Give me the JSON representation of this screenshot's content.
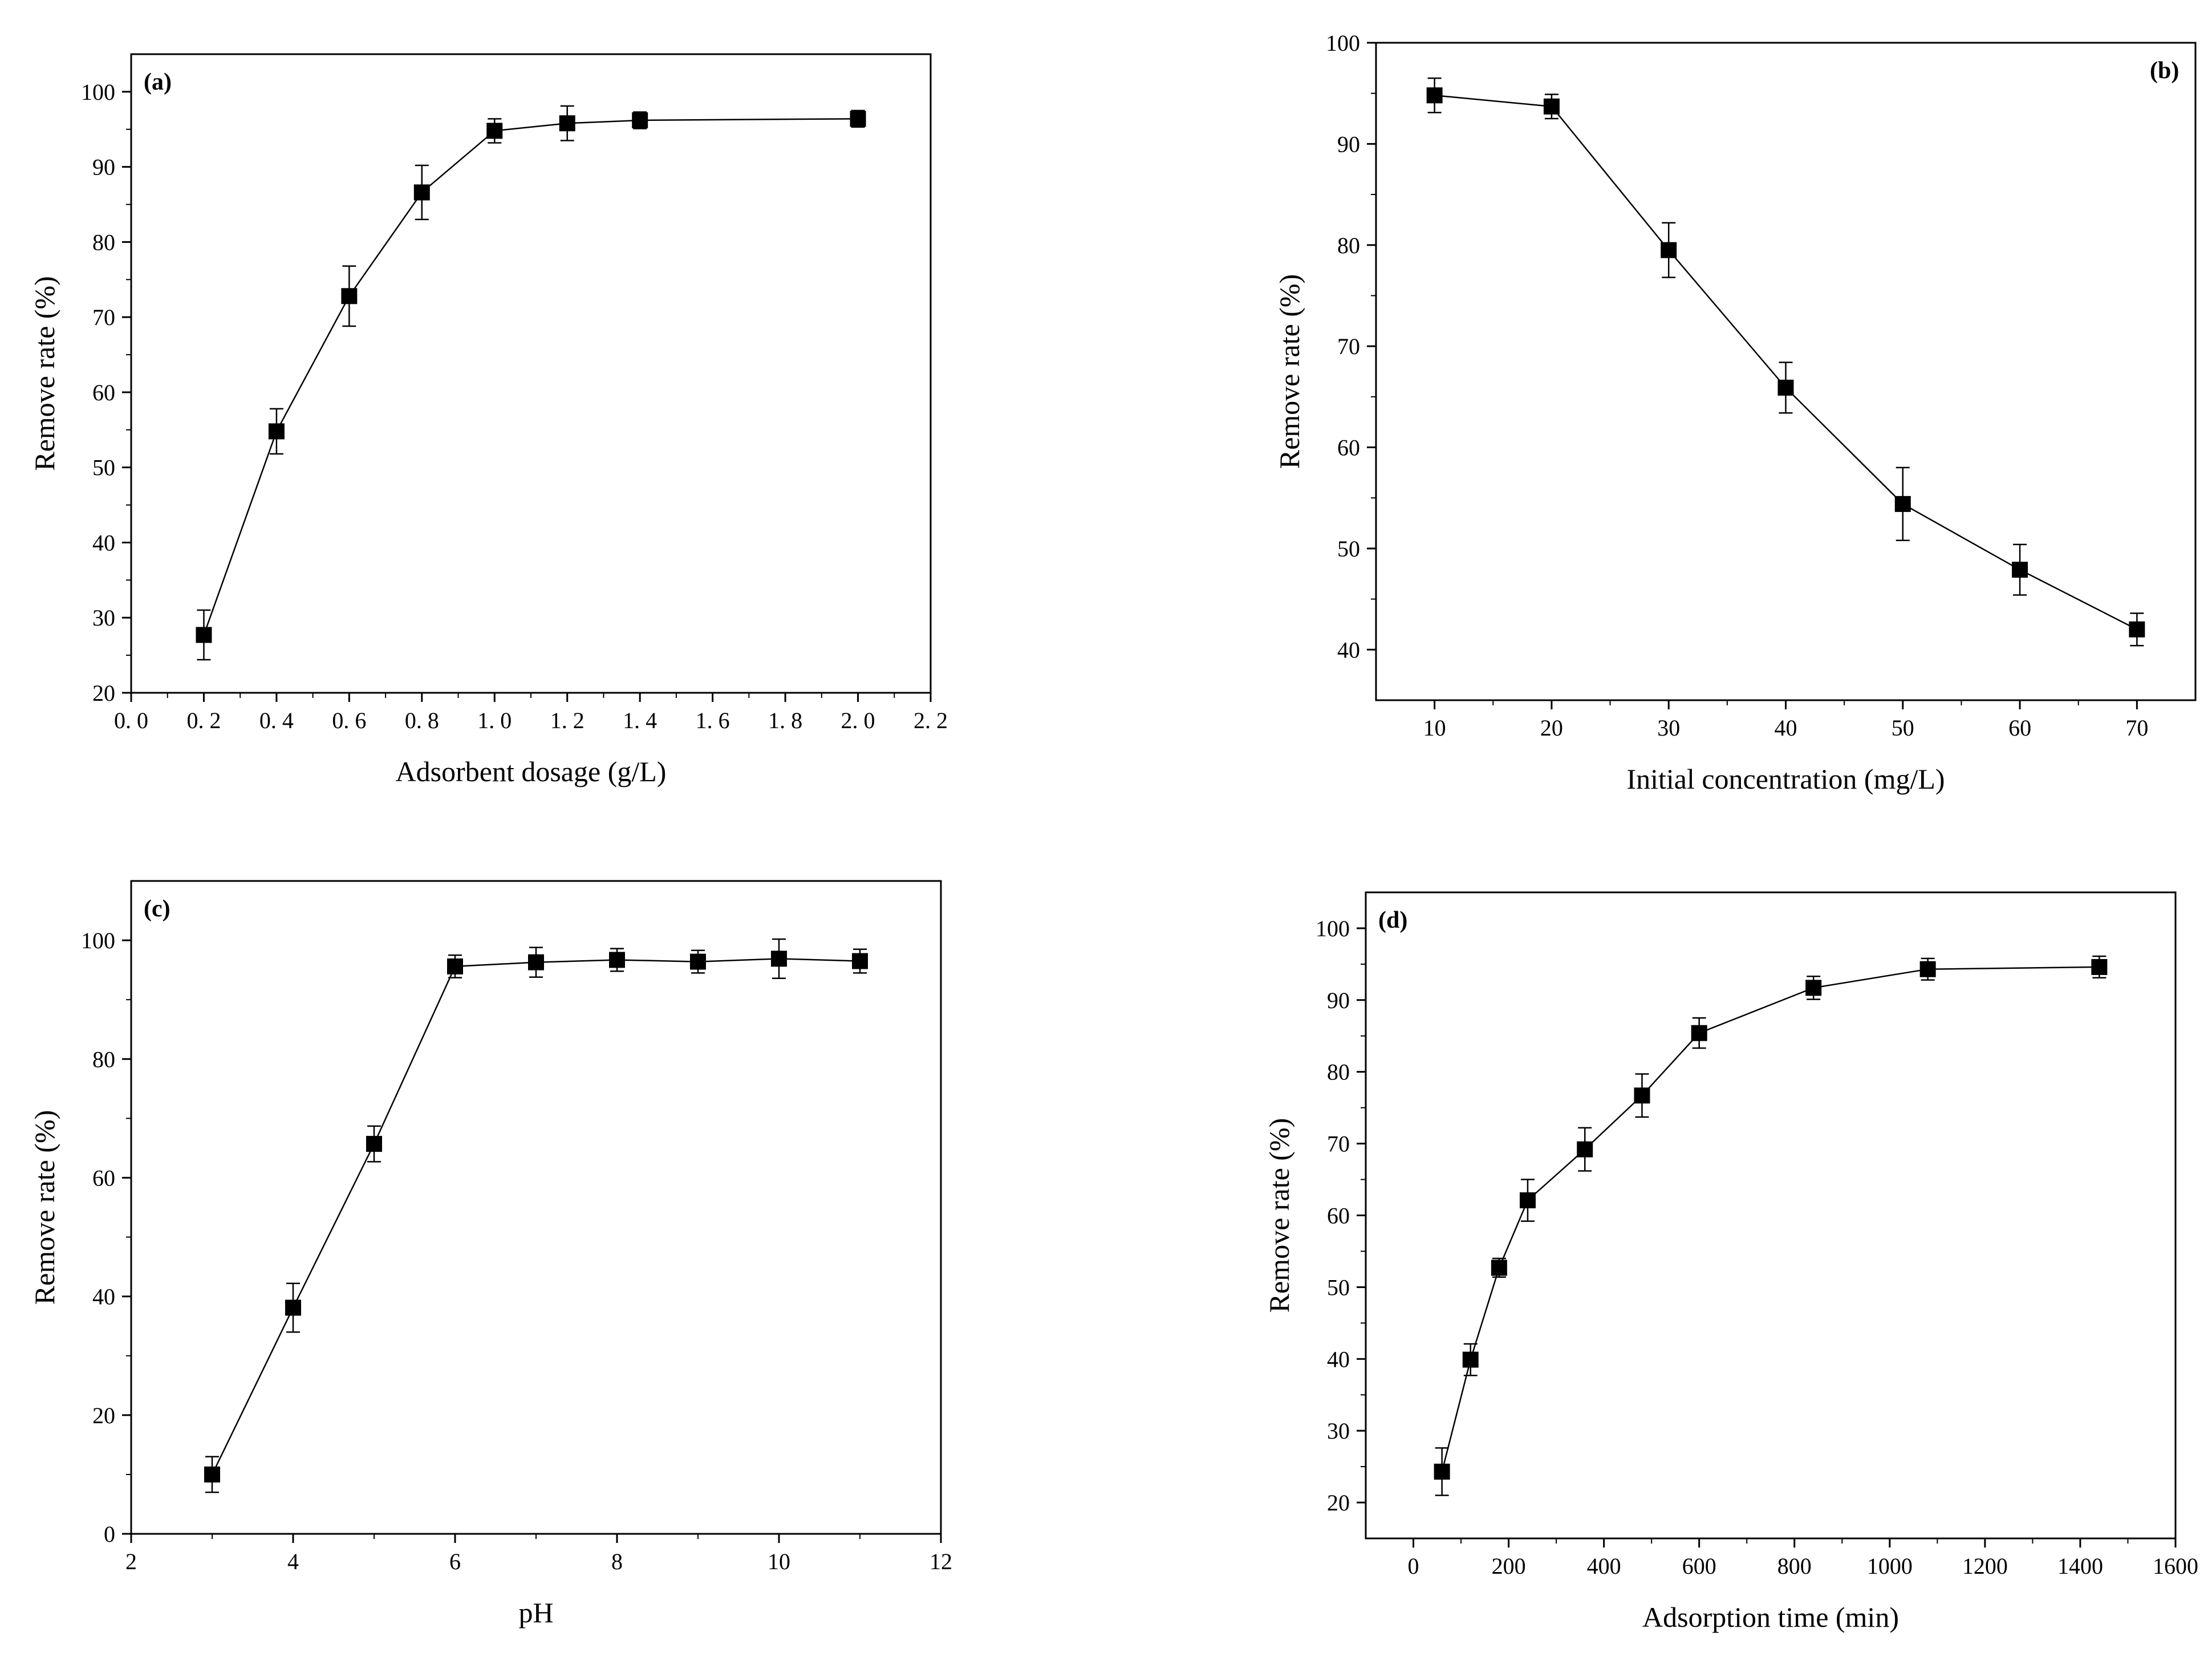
{
  "chart_data": [
    {
      "type": "line",
      "panel_label": "(a)",
      "xlabel": "Adsorbent dosage (g/L)",
      "ylabel": "Remove rate (%)",
      "xlim": [
        0.0,
        2.2
      ],
      "ylim": [
        20,
        105
      ],
      "x_ticks": [
        0.0,
        0.2,
        0.4,
        0.6,
        0.8,
        1.0,
        1.2,
        1.4,
        1.6,
        1.8,
        2.0,
        2.2
      ],
      "x_tick_labels": [
        "0. 0",
        "0. 2",
        "0. 4",
        "0. 6",
        "0. 8",
        "1. 0",
        "1. 2",
        "1. 4",
        "1. 6",
        "1. 8",
        "2. 0",
        "2. 2"
      ],
      "y_ticks": [
        20,
        30,
        40,
        50,
        60,
        70,
        80,
        90,
        100
      ],
      "y_tick_labels": [
        "20",
        "30",
        "40",
        "50",
        "60",
        "70",
        "80",
        "90",
        "100"
      ],
      "series": [
        {
          "name": "Remove rate",
          "x": [
            0.2,
            0.4,
            0.6,
            0.8,
            1.0,
            1.2,
            1.4,
            2.0
          ],
          "y": [
            27.7,
            54.8,
            72.8,
            86.6,
            94.8,
            95.8,
            96.2,
            96.4
          ],
          "err": [
            3.3,
            3.0,
            4.0,
            3.6,
            1.6,
            2.3,
            1.1,
            1.1
          ]
        }
      ]
    },
    {
      "type": "line",
      "panel_label": "(b)",
      "xlabel": "Initial concentration (mg/L)",
      "ylabel": "Remove rate (%)",
      "xlim": [
        5,
        75
      ],
      "ylim": [
        35,
        100
      ],
      "x_ticks": [
        10,
        20,
        30,
        40,
        50,
        60,
        70
      ],
      "x_tick_labels": [
        "10",
        "20",
        "30",
        "40",
        "50",
        "60",
        "70"
      ],
      "y_ticks": [
        40,
        50,
        60,
        70,
        80,
        90,
        100
      ],
      "y_tick_labels": [
        "40",
        "50",
        "60",
        "70",
        "80",
        "90",
        "100"
      ],
      "series": [
        {
          "name": "Remove rate",
          "x": [
            10,
            20,
            30,
            40,
            50,
            60,
            70
          ],
          "y": [
            94.8,
            93.7,
            79.5,
            65.9,
            54.4,
            47.9,
            42.0
          ],
          "err": [
            1.7,
            1.2,
            2.7,
            2.5,
            3.6,
            2.5,
            1.6
          ]
        }
      ]
    },
    {
      "type": "line",
      "panel_label": "(c)",
      "xlabel": "pH",
      "ylabel": "Remove rate (%)",
      "xlim": [
        2,
        12
      ],
      "ylim": [
        0,
        110
      ],
      "x_ticks": [
        2,
        4,
        6,
        8,
        10,
        12
      ],
      "x_tick_labels": [
        "2",
        "4",
        "6",
        "8",
        "10",
        "12"
      ],
      "y_ticks": [
        0,
        20,
        40,
        60,
        80,
        100
      ],
      "y_tick_labels": [
        "0",
        "20",
        "40",
        "60",
        "80",
        "100"
      ],
      "series": [
        {
          "name": "Remove rate",
          "x": [
            3,
            4,
            5,
            6,
            7,
            8,
            9,
            10,
            11
          ],
          "y": [
            10.0,
            38.1,
            65.7,
            95.6,
            96.3,
            96.7,
            96.4,
            96.9,
            96.5
          ],
          "err": [
            3.0,
            4.1,
            3.0,
            1.9,
            2.5,
            1.9,
            1.9,
            3.3,
            2.0
          ]
        }
      ]
    },
    {
      "type": "line",
      "panel_label": "(d)",
      "xlabel": "Adsorption time (min)",
      "ylabel": "Remove rate (%)",
      "xlim": [
        -100,
        1600
      ],
      "ylim": [
        15,
        105
      ],
      "x_ticks": [
        0,
        200,
        400,
        600,
        800,
        1000,
        1200,
        1400,
        1600
      ],
      "x_tick_labels": [
        "0",
        "200",
        "400",
        "600",
        "800",
        "1000",
        "1200",
        "1400",
        "1600"
      ],
      "y_ticks": [
        20,
        30,
        40,
        50,
        60,
        70,
        80,
        90,
        100
      ],
      "y_tick_labels": [
        "20",
        "30",
        "40",
        "50",
        "60",
        "70",
        "80",
        "90",
        "100"
      ],
      "series": [
        {
          "name": "Remove rate",
          "x": [
            60,
            120,
            180,
            240,
            360,
            480,
            600,
            840,
            1080,
            1440
          ],
          "y": [
            24.3,
            39.9,
            52.7,
            62.1,
            69.2,
            76.7,
            85.4,
            91.7,
            94.3,
            94.6
          ],
          "err": [
            3.3,
            2.2,
            1.3,
            2.9,
            3.0,
            3.0,
            2.1,
            1.6,
            1.5,
            1.5
          ]
        }
      ]
    }
  ]
}
